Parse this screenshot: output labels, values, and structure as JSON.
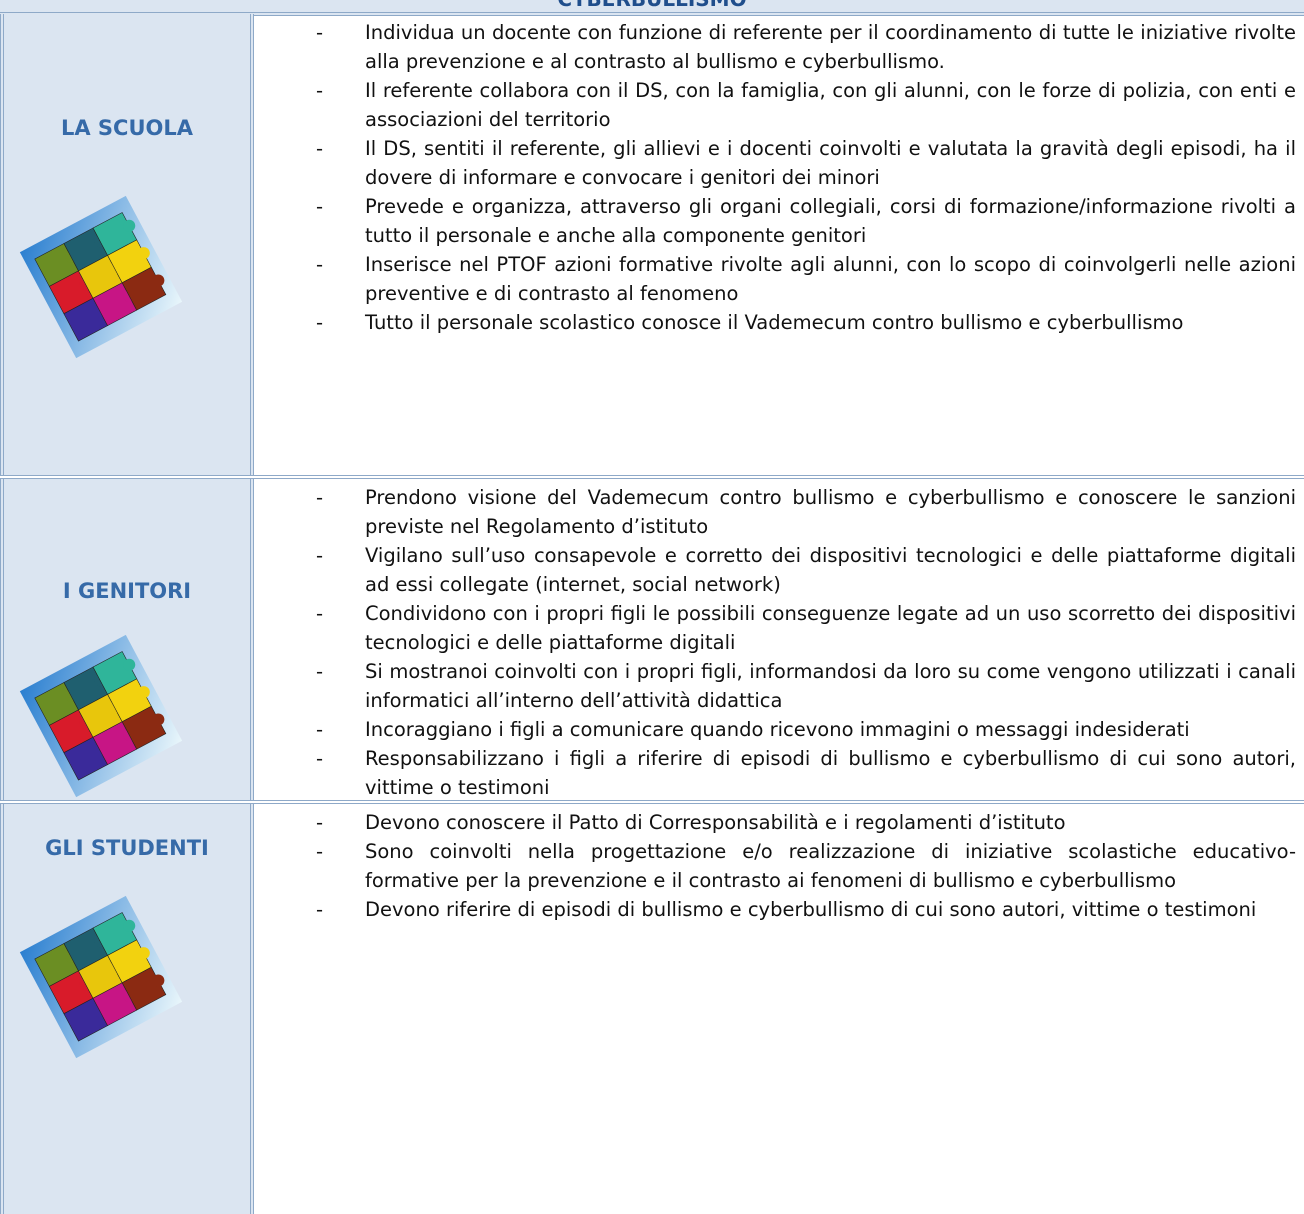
{
  "header": {
    "title": "CYBERBULLISMO"
  },
  "rows": [
    {
      "label": "LA SCUOLA",
      "items": [
        "Individua un docente con funzione di referente per il coordinamento di tutte le iniziative rivolte alla prevenzione e al contrasto al bullismo e cyberbullismo.",
        "Il referente collabora con il DS, con la famiglia, con gli alunni, con le forze di polizia, con enti e associazioni del territorio",
        "Il DS, sentiti il referente, gli allievi e i docenti coinvolti e valutata la gravità degli episodi, ha il dovere di informare e convocare i genitori dei minori",
        "Prevede e organizza, attraverso gli organi collegiali, corsi di formazione/informazione rivolti a tutto il personale e anche alla componente genitori",
        "Inserisce nel PTOF azioni formative rivolte agli alunni, con lo scopo di coinvolgerli nelle azioni preventive e di contrasto al fenomeno",
        "Tutto il personale scolastico conosce il Vademecum contro bullismo e cyberbullismo"
      ]
    },
    {
      "label": "I GENITORI",
      "items": [
        "Prendono visione del Vademecum contro bullismo e cyberbullismo e conoscere le sanzioni previste nel Regolamento d’istituto",
        "Vigilano sull’uso consapevole e corretto dei dispositivi tecnologici e delle piattaforme digitali ad essi collegate (internet, social network)",
        "Condividono con i propri figli le possibili conseguenze legate ad un uso scorretto dei dispositivi tecnologici e delle piattaforme digitali",
        "Si mostranoi coinvolti con i propri figli, informandosi da loro su come vengono utilizzati i canali informatici all’interno dell’attività didattica",
        "Incoraggiano i figli a comunicare quando ricevono immagini o messaggi indesiderati",
        "Responsabilizzano i figli a riferire di episodi di bullismo e cyberbullismo di cui sono autori, vittime o testimoni"
      ]
    },
    {
      "label": "GLI STUDENTI",
      "items": [
        "Devono conoscere il Patto di Corresponsabilità e i regolamenti d’istituto",
        "Sono coinvolti nella progettazione e/o realizzazione di iniziative scolastiche educativo-formative per la prevenzione e il contrasto ai fenomeni di bullismo e cyberbullismo",
        "Devono riferire di episodi di bullismo e cyberbullismo di cui sono autori, vittime o testimoni"
      ]
    }
  ]
}
